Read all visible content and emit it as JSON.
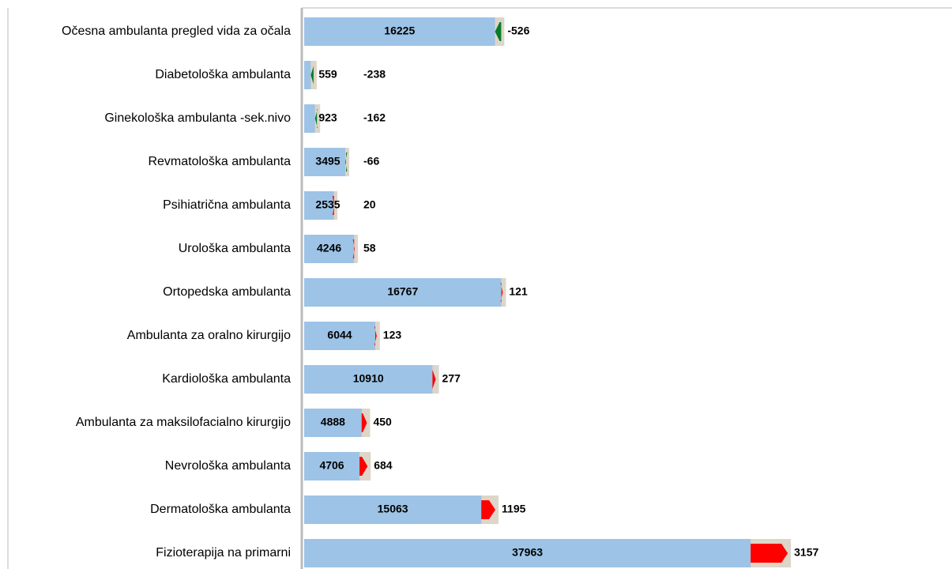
{
  "chart_data": {
    "type": "bar",
    "orientation": "horizontal",
    "categories": [
      "Očesna ambulanta  pregled vida za očala",
      "Diabetološka ambulanta",
      "Ginekološka ambulanta -sek.nivo",
      "Revmatološka ambulanta",
      "Psihiatrična ambulanta",
      "Urološka ambulanta",
      "Ortopedska ambulanta",
      "Ambulanta za oralno kirurgijo",
      "Kardiološka ambulanta",
      "Ambulanta za maksilofacialno kirurgijo",
      "Nevrološka ambulanta",
      "Dermatološka ambulanta",
      "Fizioterapija na primarni"
    ],
    "values": [
      16225,
      559,
      923,
      3495,
      2535,
      4246,
      16767,
      6044,
      10910,
      4888,
      4706,
      15063,
      37963
    ],
    "changes": [
      -526,
      -238,
      -162,
      -66,
      20,
      58,
      121,
      123,
      277,
      450,
      684,
      1195,
      3157
    ],
    "color": "#9dc3e6",
    "decrease_color": "#0a7a2a",
    "increase_color": "#ff0000",
    "band_color": "#ddd5c8",
    "xlim": [
      0,
      44000
    ]
  }
}
